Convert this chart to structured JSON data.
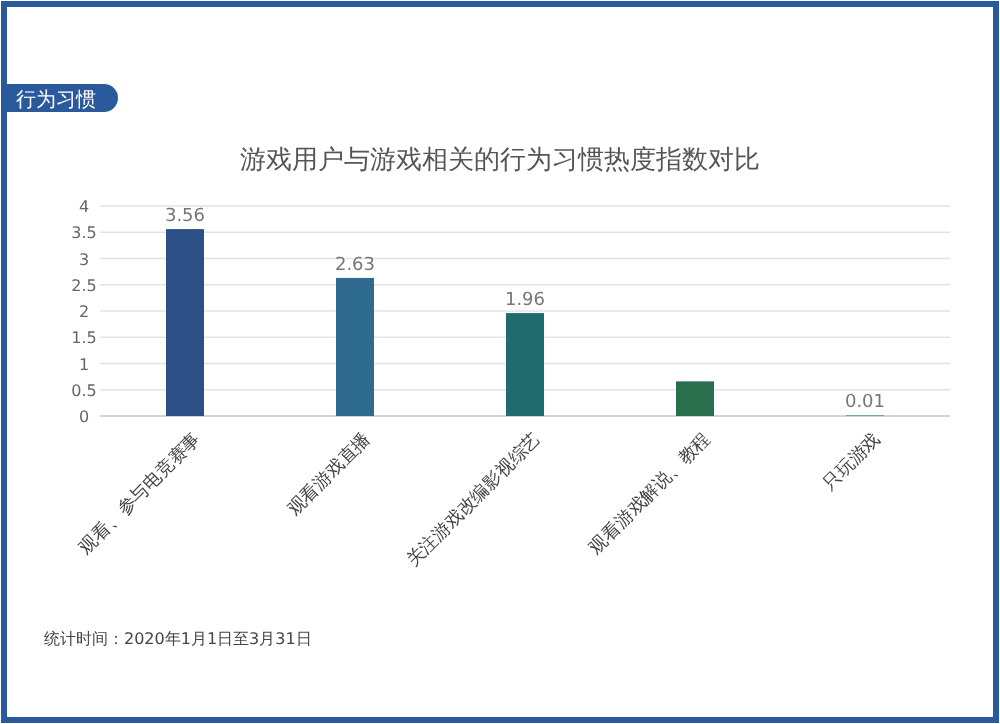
{
  "chart_data": {
    "type": "bar",
    "title": "游戏用户与游戏相关的行为习惯热度指数对比",
    "subtitle": "行为习惯",
    "categories": [
      "观看、参与电竞赛事",
      "观看游戏直播",
      "关注游戏改编影视综艺",
      "观看游戏解说、教程",
      "只玩游戏"
    ],
    "values": [
      3.56,
      2.63,
      1.96,
      0.66,
      0.01
    ],
    "value_labels": [
      "3.56",
      "2.63",
      "1.96",
      null,
      "0.01"
    ],
    "colors": [
      "#2c4f85",
      "#2f6b8e",
      "#1f6b6e",
      "#2a6e4e",
      "#2e7a55"
    ],
    "ylim": [
      0,
      4
    ],
    "yticks": [
      0,
      {
        "value": 0.5,
        "label": "0.5"
      },
      1,
      {
        "value": 1.5,
        "label": "1.5"
      },
      2,
      {
        "value": 2.5,
        "label": "2.5"
      },
      3,
      {
        "value": 3.5,
        "label": "3.5"
      },
      4
    ],
    "grid": "y",
    "annotations": [
      "统计时间：2020年1月1日至3月31日"
    ]
  }
}
